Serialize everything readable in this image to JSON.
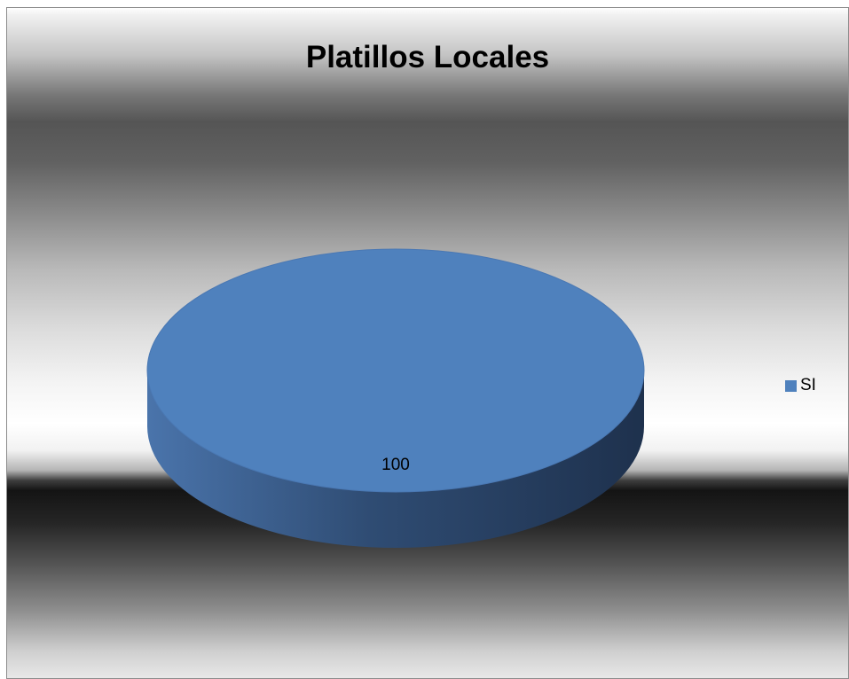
{
  "chart_data": {
    "type": "pie",
    "title": "Platillos Locales",
    "series": [
      {
        "name": "SI",
        "value": 100,
        "data_label": "100",
        "color": "#4f81bd"
      }
    ],
    "legend": {
      "position": "right",
      "entries": [
        "SI"
      ]
    },
    "style": "3d"
  }
}
